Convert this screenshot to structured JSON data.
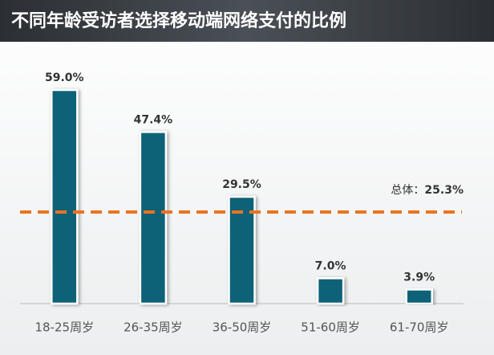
{
  "chart_data": {
    "type": "bar",
    "title": "不同年龄受访者选择移动端网络支付的比例",
    "categories": [
      "18-25周岁",
      "26-35周岁",
      "36-50周岁",
      "51-60周岁",
      "61-70周岁"
    ],
    "values": [
      59.0,
      47.4,
      29.5,
      7.0,
      3.9
    ],
    "value_labels": [
      "59.0%",
      "47.4%",
      "29.5%",
      "7.0%",
      "3.9%"
    ],
    "color": "#0f6278",
    "ylim": [
      0,
      65
    ],
    "reference_line": {
      "value": 25.3,
      "label": "总体：",
      "value_label": "25.3%",
      "color": "#ea7420"
    }
  }
}
